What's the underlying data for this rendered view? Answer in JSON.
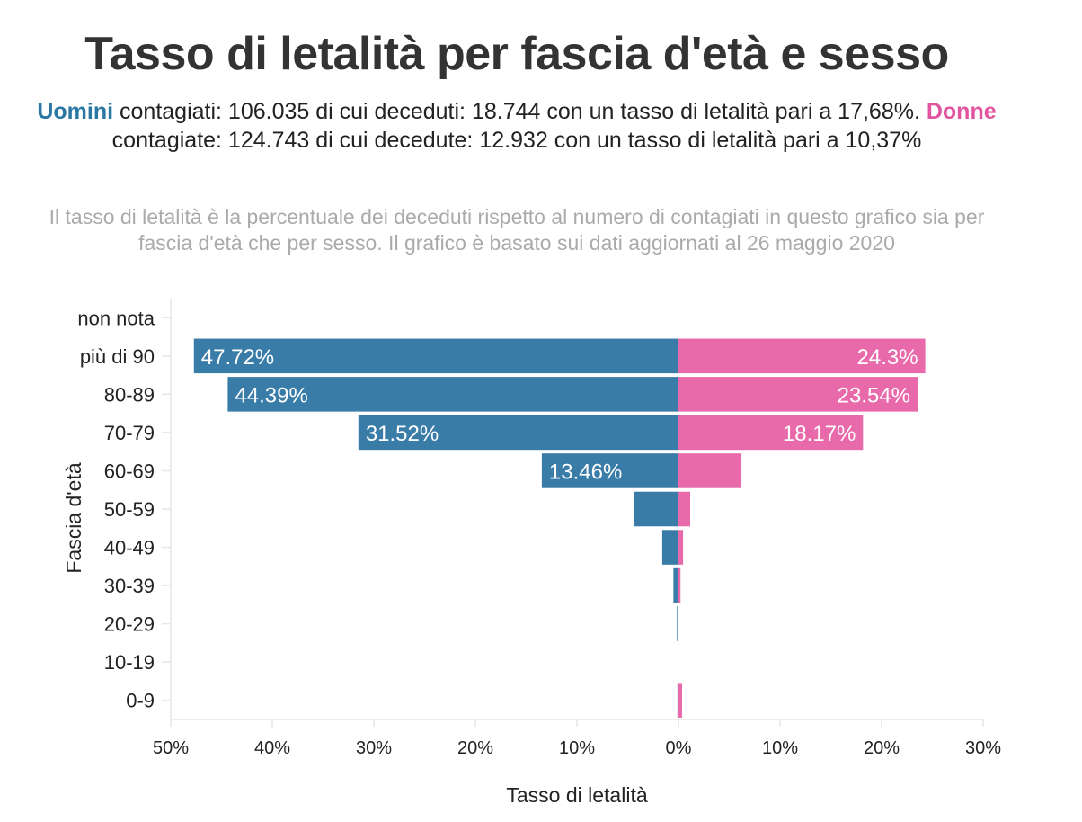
{
  "title": "Tasso di letalità per fascia d'età e sesso",
  "subtitle": {
    "men_word": "Uomini",
    "men_text": " contagiati: 106.035 di cui deceduti: 18.744 con un tasso di letalità pari a 17,68%. ",
    "women_word": "Donne",
    "women_text": " contagiate: 124.743 di cui decedute: 12.932 con un tasso di letalità pari a 10,37%"
  },
  "note": "Il tasso di letalità è la percentuale dei deceduti rispetto al numero di contagiati in questo grafico sia per fascia d'età che per sesso. Il grafico è basato sui dati aggiornati al 26 maggio 2020",
  "chart_data": {
    "type": "bar",
    "orientation": "horizontal-diverging",
    "title": "Tasso di letalità per fascia d'età e sesso",
    "xlabel": "Tasso di letalità",
    "ylabel": "Fascia d'età",
    "xlim": [
      -50,
      30
    ],
    "x_ticks": [
      "50%",
      "40%",
      "30%",
      "20%",
      "10%",
      "0%",
      "10%",
      "20%",
      "30%"
    ],
    "x_tick_values": [
      -50,
      -40,
      -30,
      -20,
      -10,
      0,
      10,
      20,
      30
    ],
    "categories": [
      "non nota",
      "più di 90",
      "80-89",
      "70-79",
      "60-69",
      "50-59",
      "40-49",
      "30-39",
      "20-29",
      "10-19",
      "0-9"
    ],
    "series": [
      {
        "name": "Uomini",
        "color": "#3a7ca8",
        "side": "left",
        "values": [
          0,
          47.72,
          44.39,
          31.52,
          13.46,
          4.4,
          1.6,
          0.5,
          0.15,
          0,
          0.1
        ],
        "labels": [
          "",
          "47.72%",
          "44.39%",
          "31.52%",
          "13.46%",
          "",
          "",
          "",
          "",
          "",
          ""
        ]
      },
      {
        "name": "Donne",
        "color": "#e86aab",
        "side": "right",
        "values": [
          0,
          24.3,
          23.54,
          18.17,
          6.2,
          1.15,
          0.45,
          0.2,
          0,
          0,
          0.35
        ],
        "labels": [
          "",
          "24.3%",
          "23.54%",
          "18.17%",
          "",
          "",
          "",
          "",
          "",
          "",
          ""
        ]
      }
    ]
  }
}
